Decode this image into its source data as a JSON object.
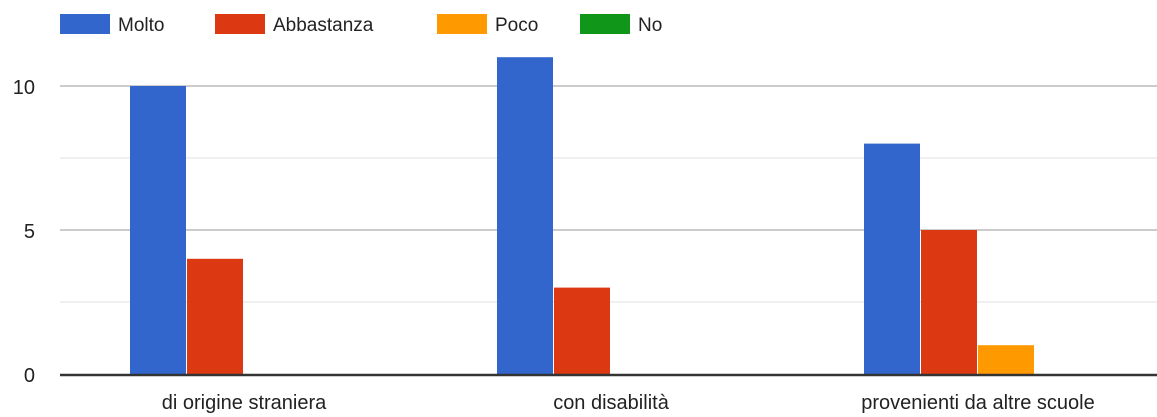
{
  "chart_data": {
    "type": "bar",
    "title": "",
    "xlabel": "",
    "ylabel": "",
    "categories": [
      "di origine straniera",
      "con disabilità",
      "provenienti da altre scuole"
    ],
    "series": [
      {
        "name": "Molto",
        "color": "#3366cc",
        "values": [
          10,
          11,
          8
        ]
      },
      {
        "name": "Abbastanza",
        "color": "#dc3912",
        "values": [
          4,
          3,
          5
        ]
      },
      {
        "name": "Poco",
        "color": "#ff9900",
        "values": [
          0,
          0,
          1
        ]
      },
      {
        "name": "No",
        "color": "#109618",
        "values": [
          0,
          0,
          0
        ]
      }
    ],
    "ylim": [
      0,
      10.5
    ],
    "yticks": [
      0,
      5,
      10
    ],
    "ytick_labels": [
      "0",
      "5",
      "10"
    ],
    "grid": true,
    "legend_position": "top-left"
  }
}
